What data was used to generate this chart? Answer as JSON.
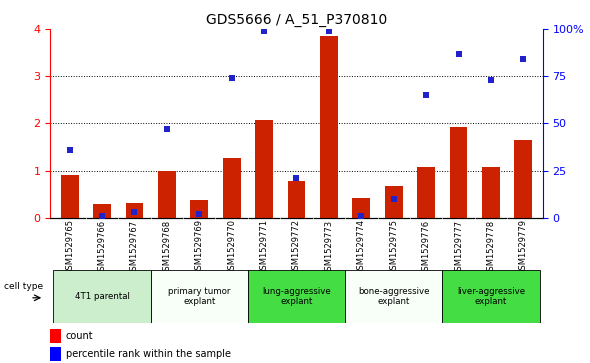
{
  "title": "GDS5666 / A_51_P370810",
  "samples": [
    "GSM1529765",
    "GSM1529766",
    "GSM1529767",
    "GSM1529768",
    "GSM1529769",
    "GSM1529770",
    "GSM1529771",
    "GSM1529772",
    "GSM1529773",
    "GSM1529774",
    "GSM1529775",
    "GSM1529776",
    "GSM1529777",
    "GSM1529778",
    "GSM1529779"
  ],
  "bar_values": [
    0.9,
    0.3,
    0.32,
    1.0,
    0.38,
    1.27,
    2.07,
    0.78,
    3.85,
    0.42,
    0.68,
    1.07,
    1.92,
    1.08,
    1.65
  ],
  "dot_values_pct": [
    36,
    1,
    3,
    47,
    2,
    74,
    99,
    21,
    99,
    1,
    10,
    65,
    87,
    73,
    84
  ],
  "bar_color": "#cc2200",
  "dot_color": "#2222cc",
  "ylim_left": [
    0,
    4
  ],
  "ylim_right": [
    0,
    100
  ],
  "yticks_left": [
    0,
    1,
    2,
    3,
    4
  ],
  "ytick_labels_left": [
    "0",
    "1",
    "2",
    "3",
    "4"
  ],
  "yticks_right": [
    0,
    25,
    50,
    75,
    100
  ],
  "ytick_labels_right": [
    "0",
    "25",
    "50",
    "75",
    "100%"
  ],
  "cell_type_groups": [
    {
      "label": "4T1 parental",
      "start": 0,
      "end": 2,
      "color": "#cceecc"
    },
    {
      "label": "primary tumor\nexplant",
      "start": 3,
      "end": 5,
      "color": "#f8fff8"
    },
    {
      "label": "lung-aggressive\nexplant",
      "start": 6,
      "end": 8,
      "color": "#44dd44"
    },
    {
      "label": "bone-aggressive\nexplant",
      "start": 9,
      "end": 11,
      "color": "#f8fff8"
    },
    {
      "label": "liver-aggressive\nexplant",
      "start": 12,
      "end": 14,
      "color": "#44dd44"
    }
  ],
  "cell_type_label": "cell type",
  "legend_bar_label": "count",
  "legend_dot_label": "percentile rank within the sample",
  "plot_bg": "#ffffff",
  "sample_row_bg": "#d0d0d0",
  "title_fontsize": 10,
  "bar_width": 0.55
}
